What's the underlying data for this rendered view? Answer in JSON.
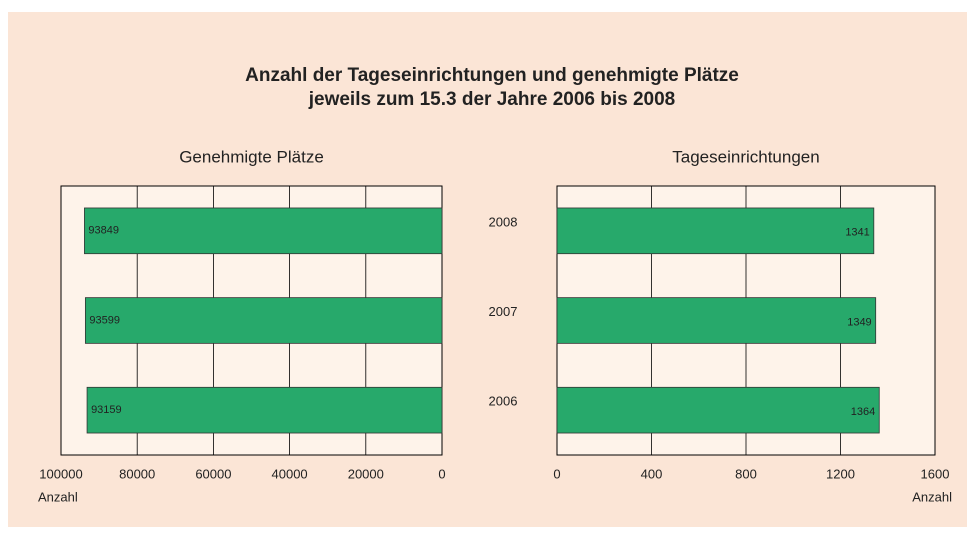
{
  "title": [
    "Anzahl der Tageseinrichtungen und genehmigte Plätze",
    "jeweils zum 15.3 der Jahre 2006 bis 2008"
  ],
  "chart_data": [
    {
      "type": "hbar",
      "title": "Genehmigte Plätze",
      "xlabel": "Anzahl",
      "categories": [
        null,
        null,
        null
      ],
      "values": [
        93849,
        93599,
        93159
      ],
      "color": "#27a96b",
      "xlim": [
        100000,
        0
      ],
      "xticks": [
        100000,
        80000,
        60000,
        40000,
        20000,
        0
      ],
      "grid": true
    },
    {
      "type": "hbar",
      "title": "Tageseinrichtungen",
      "xlabel": "Anzahl",
      "categories": [
        "2008",
        "2007",
        "2006"
      ],
      "values": [
        1341,
        1349,
        1364
      ],
      "color": "#27a96b",
      "xlim": [
        0,
        1600
      ],
      "xticks": [
        0,
        400,
        800,
        1200,
        1600
      ],
      "grid": true
    }
  ]
}
